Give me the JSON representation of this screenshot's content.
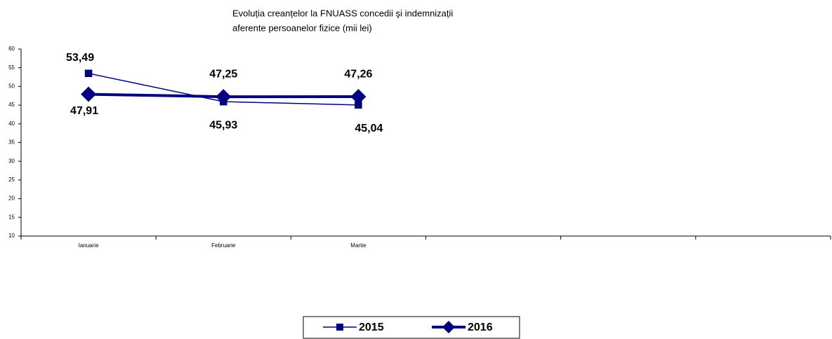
{
  "chart_data": {
    "type": "line",
    "title": [
      "Evoluția creanțelor la FNUASS concedii şi indemnizații",
      "aferente persoanelor fizice (mii lei)"
    ],
    "categories": [
      "Ianuarie",
      "Februarie",
      "Martie",
      null,
      null,
      null
    ],
    "series": [
      {
        "name": "2015",
        "color": "#000080",
        "marker": "square",
        "values": [
          53.49,
          45.93,
          45.04,
          null,
          null,
          null
        ],
        "value_labels": [
          "53,49",
          "45,93",
          "45,04",
          null,
          null,
          null
        ]
      },
      {
        "name": "2016",
        "color": "#000080",
        "marker": "diamond",
        "values": [
          47.91,
          47.25,
          47.26,
          null,
          null,
          null
        ],
        "value_labels": [
          "47,91",
          "47,25",
          "47,26",
          null,
          null,
          null
        ]
      }
    ],
    "ylim": [
      10,
      60
    ],
    "yticks": [
      10,
      15,
      20,
      25,
      30,
      35,
      40,
      45,
      50,
      55,
      60
    ],
    "legend": "bottom"
  }
}
